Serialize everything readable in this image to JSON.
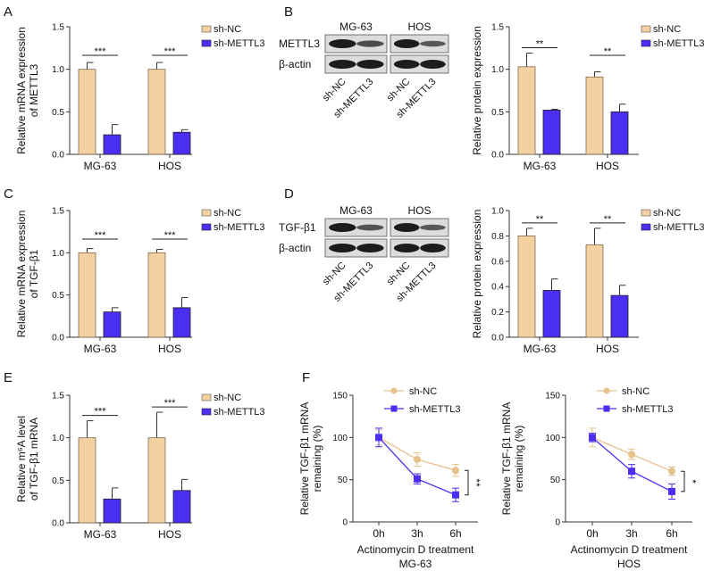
{
  "colors": {
    "nc": "#f3d1a1",
    "nc_line": "#e8c08c",
    "kd": "#4a2ef2",
    "kd_line": "#3320d0",
    "axis": "#333333"
  },
  "legend": {
    "nc": "sh-NC",
    "kd": "sh-METTL3"
  },
  "chart_data": [
    {
      "panel": "A",
      "type": "bar",
      "ylabel": [
        "Relative mRNA expression",
        "of METTL3"
      ],
      "ylim": [
        0,
        1.5
      ],
      "yticks": [
        "0.0",
        "0.5",
        "1.0",
        "1.5"
      ],
      "categories": [
        "MG-63",
        "HOS"
      ],
      "series": [
        {
          "name": "sh-NC",
          "values": [
            1.0,
            1.0
          ],
          "errors": [
            0.08,
            0.08
          ]
        },
        {
          "name": "sh-METTL3",
          "values": [
            0.23,
            0.26
          ],
          "errors": [
            0.12,
            0.03
          ]
        }
      ],
      "significance": [
        "***",
        "***"
      ]
    },
    {
      "panel": "B",
      "type": "bar",
      "ylabel": [
        "Relative protein expression"
      ],
      "ylim": [
        0,
        1.5
      ],
      "yticks": [
        "0.0",
        "0.5",
        "1.0",
        "1.5"
      ],
      "categories": [
        "MG-63",
        "HOS"
      ],
      "series": [
        {
          "name": "sh-NC",
          "values": [
            1.03,
            0.91
          ],
          "errors": [
            0.16,
            0.06
          ]
        },
        {
          "name": "sh-METTL3",
          "values": [
            0.52,
            0.5
          ],
          "errors": [
            0.01,
            0.09
          ]
        }
      ],
      "significance": [
        "**",
        "**"
      ]
    },
    {
      "panel": "C",
      "type": "bar",
      "ylabel": [
        "Relative mRNA expression",
        "of TGF-β1"
      ],
      "ylim": [
        0,
        1.5
      ],
      "yticks": [
        "0.0",
        "0.5",
        "1.0",
        "1.5"
      ],
      "categories": [
        "MG-63",
        "HOS"
      ],
      "series": [
        {
          "name": "sh-NC",
          "values": [
            1.0,
            1.0
          ],
          "errors": [
            0.05,
            0.04
          ]
        },
        {
          "name": "sh-METTL3",
          "values": [
            0.3,
            0.35
          ],
          "errors": [
            0.05,
            0.12
          ]
        }
      ],
      "significance": [
        "***",
        "***"
      ]
    },
    {
      "panel": "D",
      "type": "bar",
      "ylabel": [
        "Relative protein expression"
      ],
      "ylim": [
        0,
        1.0
      ],
      "yticks": [
        "0.0",
        "0.2",
        "0.4",
        "0.6",
        "0.8",
        "1.0"
      ],
      "categories": [
        "MG-63",
        "HOS"
      ],
      "series": [
        {
          "name": "sh-NC",
          "values": [
            0.8,
            0.73
          ],
          "errors": [
            0.06,
            0.13
          ]
        },
        {
          "name": "sh-METTL3",
          "values": [
            0.37,
            0.33
          ],
          "errors": [
            0.09,
            0.08
          ]
        }
      ],
      "significance": [
        "**",
        "**"
      ]
    },
    {
      "panel": "E",
      "type": "bar",
      "ylabel": [
        "Relative m⁶A level",
        "of TGF-β1 mRNA"
      ],
      "ylim": [
        0,
        1.5
      ],
      "yticks": [
        "0.0",
        "0.5",
        "1.0",
        "1.5"
      ],
      "categories": [
        "MG-63",
        "HOS"
      ],
      "series": [
        {
          "name": "sh-NC",
          "values": [
            1.0,
            1.0
          ],
          "errors": [
            0.2,
            0.3
          ]
        },
        {
          "name": "sh-METTL3",
          "values": [
            0.28,
            0.38
          ],
          "errors": [
            0.13,
            0.13
          ]
        }
      ],
      "significance": [
        "***",
        "***"
      ]
    },
    {
      "panel": "F",
      "type": "line",
      "ylabel": [
        "Relative TGF-β1 mRNA",
        "remaining (%)"
      ],
      "xlabel": "Actinomycin D treatment",
      "subtitle": "MG-63",
      "ylim": [
        0,
        150
      ],
      "yticks": [
        "0",
        "50",
        "100",
        "150"
      ],
      "x": [
        "0h",
        "3h",
        "6h"
      ],
      "series": [
        {
          "name": "sh-NC",
          "values": [
            100,
            74,
            61
          ],
          "errors": [
            9,
            8,
            7
          ]
        },
        {
          "name": "sh-METTL3",
          "values": [
            100,
            51,
            32
          ],
          "errors": [
            11,
            6,
            8
          ]
        }
      ],
      "significance": "**"
    },
    {
      "panel": "F2",
      "type": "line",
      "ylabel": [
        "Relative TGF-β1 mRNA",
        "remaining (%)"
      ],
      "xlabel": "Actinomycin D treatment",
      "subtitle": "HOS",
      "ylim": [
        0,
        150
      ],
      "yticks": [
        "0",
        "50",
        "100",
        "150"
      ],
      "x": [
        "0h",
        "3h",
        "6h"
      ],
      "series": [
        {
          "name": "sh-NC",
          "values": [
            100,
            80,
            60
          ],
          "errors": [
            11,
            6,
            5
          ]
        },
        {
          "name": "sh-METTL3",
          "values": [
            100,
            60,
            36
          ],
          "errors": [
            5,
            8,
            9
          ]
        }
      ],
      "significance": "*"
    }
  ],
  "blots": [
    {
      "panel": "B",
      "cells": [
        "MG-63",
        "HOS"
      ],
      "rows": [
        "METTL3",
        "β-actin"
      ],
      "lanes": [
        "sh-NC",
        "sh-METTL3"
      ],
      "intensity": [
        [
          1,
          0.6,
          1,
          0.5
        ],
        [
          1,
          1,
          1,
          1
        ]
      ]
    },
    {
      "panel": "D",
      "cells": [
        "MG-63",
        "HOS"
      ],
      "rows": [
        "TGF-β1",
        "β-actin"
      ],
      "lanes": [
        "sh-NC",
        "sh-METTL3"
      ],
      "intensity": [
        [
          1,
          0.55,
          1,
          0.5
        ],
        [
          1,
          1,
          1,
          1
        ]
      ]
    }
  ],
  "panel_letters": [
    "A",
    "B",
    "C",
    "D",
    "E",
    "F"
  ]
}
